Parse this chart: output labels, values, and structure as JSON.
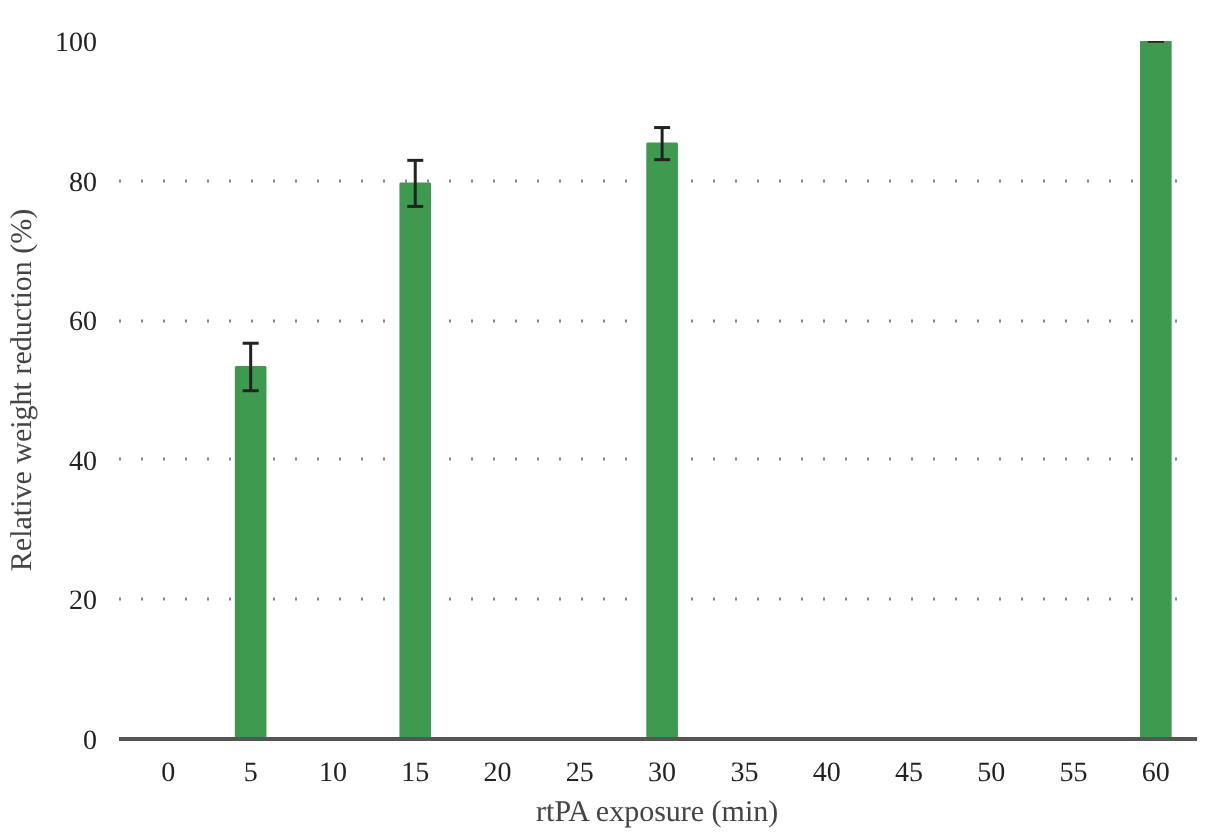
{
  "chart_data": {
    "type": "bar",
    "xlabel": "rtPA exposure (min)",
    "ylabel": "Relative weight reduction (%)",
    "categories": [
      "0",
      "5",
      "10",
      "15",
      "20",
      "25",
      "30",
      "35",
      "40",
      "45",
      "50",
      "55",
      "60"
    ],
    "values": [
      null,
      53.3,
      null,
      79.6,
      null,
      null,
      85.3,
      null,
      null,
      null,
      null,
      null,
      100
    ],
    "errors": [
      null,
      3.4,
      null,
      3.3,
      null,
      null,
      2.3,
      null,
      null,
      null,
      null,
      null,
      0
    ],
    "color": "#3d9a4f",
    "ylim": [
      0,
      100
    ],
    "yticks": [
      0,
      20,
      40,
      60,
      80,
      100
    ],
    "grid": "y"
  }
}
